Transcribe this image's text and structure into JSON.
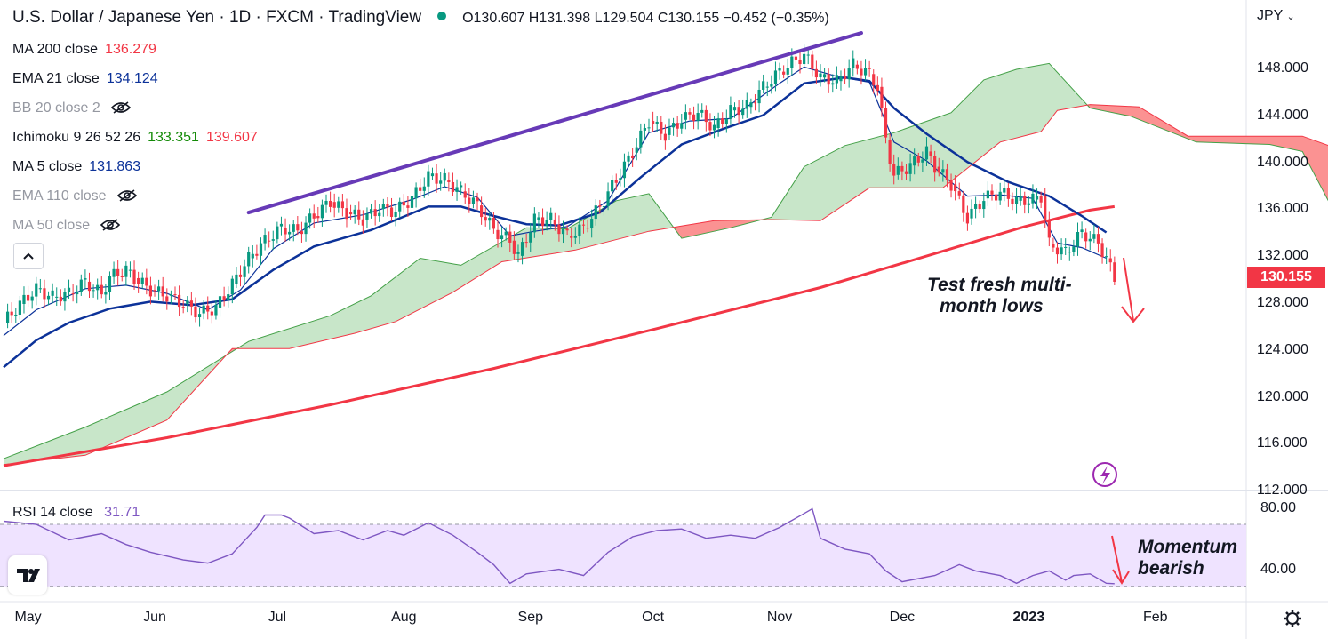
{
  "header": {
    "title": "U.S. Dollar / Japanese Yen · 1D · FXCM · TradingView",
    "ohlc": "O130.607 H131.398 L129.504 C130.155 −0.452 (−0.35%)"
  },
  "indicators": [
    {
      "label": "MA 200 close",
      "value": "136.279",
      "color": "#f23645",
      "hidden": false
    },
    {
      "label": "EMA 21 close",
      "value": "134.124",
      "color": "#0c3299",
      "hidden": false
    },
    {
      "label": "BB 20 close 2",
      "value": "",
      "hidden": true
    },
    {
      "label": "Ichimoku 9 26 52 26",
      "value": "133.351",
      "value2": "139.607",
      "color": "#138a07",
      "color2": "#f23645",
      "hidden": false
    },
    {
      "label": "MA 5 close",
      "value": "131.863",
      "color": "#0c3299",
      "hidden": false
    },
    {
      "label": "EMA 110 close",
      "value": "",
      "hidden": true
    },
    {
      "label": "MA 50 close",
      "value": "",
      "hidden": true
    }
  ],
  "currency": "JPY",
  "last_price": "130.155",
  "annotations": {
    "price_note_line1": "Test fresh multi-",
    "price_note_line2": "month lows",
    "rsi_note_line1": "Momentum",
    "rsi_note_line2": "bearish"
  },
  "rsi": {
    "label": "RSI 14 close",
    "value": "31.71"
  },
  "price_axis_labels": [
    "148.000",
    "144.000",
    "140.000",
    "136.000",
    "132.000",
    "128.000",
    "124.000",
    "120.000",
    "116.000",
    "112.000"
  ],
  "rsi_axis_labels": [
    "80.00",
    "40.00"
  ],
  "time_axis_labels": [
    "May",
    "Jun",
    "Jul",
    "Aug",
    "Sep",
    "Oct",
    "Nov",
    "Dec",
    "2023",
    "Feb"
  ],
  "colors": {
    "up": "#089981",
    "down": "#f23645",
    "ema21": "#0c3299",
    "ma5": "#0c3299",
    "ma200": "#f23645",
    "trendline": "#673ab7",
    "rsi": "#7e57c2",
    "cloud_bull": "#c8e6c9",
    "cloud_bear": "#fb8c8c"
  },
  "chart_data": {
    "type": "candlestick",
    "title": "U.S. Dollar / Japanese Yen · 1D · FXCM",
    "x_range": [
      "2022-04-25",
      "2023-02-06"
    ],
    "ylim": [
      112,
      152
    ],
    "close": [
      [
        0,
        126.4
      ],
      [
        4,
        128.0
      ],
      [
        8,
        129.3
      ],
      [
        12,
        128.6
      ],
      [
        16,
        128.9
      ],
      [
        20,
        129.9
      ],
      [
        24,
        128.8
      ],
      [
        26,
        130.3
      ],
      [
        30,
        130.9
      ],
      [
        32,
        130.2
      ],
      [
        36,
        129.2
      ],
      [
        40,
        128.7
      ],
      [
        44,
        128.0
      ],
      [
        48,
        127.2
      ],
      [
        52,
        127.7
      ],
      [
        56,
        129.7
      ],
      [
        60,
        131.9
      ],
      [
        64,
        133.4
      ],
      [
        68,
        134.5
      ],
      [
        72,
        134.2
      ],
      [
        76,
        135.5
      ],
      [
        80,
        136.7
      ],
      [
        84,
        135.8
      ],
      [
        88,
        135.2
      ],
      [
        92,
        136.1
      ],
      [
        96,
        135.9
      ],
      [
        100,
        137.0
      ],
      [
        104,
        138.9
      ],
      [
        108,
        138.6
      ],
      [
        112,
        137.6
      ],
      [
        116,
        136.4
      ],
      [
        120,
        134.3
      ],
      [
        124,
        133.4
      ],
      [
        126,
        132.1
      ],
      [
        130,
        135.2
      ],
      [
        134,
        135.2
      ],
      [
        138,
        133.8
      ],
      [
        142,
        134.5
      ],
      [
        146,
        136.3
      ],
      [
        150,
        138.6
      ],
      [
        154,
        140.9
      ],
      [
        158,
        143.6
      ],
      [
        162,
        142.4
      ],
      [
        166,
        143.7
      ],
      [
        170,
        144.3
      ],
      [
        174,
        143.0
      ],
      [
        178,
        144.5
      ],
      [
        182,
        144.8
      ],
      [
        186,
        146.5
      ],
      [
        190,
        147.8
      ],
      [
        194,
        148.8
      ],
      [
        196,
        149.2
      ],
      [
        200,
        147.3
      ],
      [
        204,
        147.0
      ],
      [
        208,
        148.4
      ],
      [
        212,
        147.6
      ],
      [
        214,
        146.5
      ],
      [
        216,
        142.0
      ],
      [
        218,
        139.0
      ],
      [
        222,
        139.8
      ],
      [
        226,
        141.0
      ],
      [
        228,
        139.7
      ],
      [
        232,
        138.2
      ],
      [
        236,
        135.3
      ],
      [
        240,
        137.0
      ],
      [
        244,
        137.5
      ],
      [
        248,
        136.8
      ],
      [
        252,
        136.9
      ],
      [
        254,
        137.2
      ],
      [
        256,
        133.1
      ],
      [
        260,
        132.4
      ],
      [
        264,
        134.1
      ],
      [
        268,
        133.2
      ],
      [
        270,
        131.9
      ],
      [
        272,
        130.2
      ]
    ],
    "ema21": [
      [
        0,
        122.6
      ],
      [
        8,
        124.9
      ],
      [
        16,
        126.4
      ],
      [
        26,
        127.6
      ],
      [
        36,
        128.2
      ],
      [
        46,
        127.9
      ],
      [
        56,
        128.4
      ],
      [
        66,
        130.9
      ],
      [
        76,
        132.9
      ],
      [
        90,
        134.3
      ],
      [
        104,
        136.3
      ],
      [
        112,
        136.3
      ],
      [
        120,
        135.5
      ],
      [
        128,
        134.8
      ],
      [
        136,
        134.7
      ],
      [
        146,
        135.8
      ],
      [
        156,
        138.8
      ],
      [
        166,
        141.6
      ],
      [
        176,
        142.9
      ],
      [
        186,
        144.1
      ],
      [
        196,
        146.8
      ],
      [
        206,
        147.3
      ],
      [
        212,
        147.0
      ],
      [
        218,
        144.7
      ],
      [
        226,
        142.5
      ],
      [
        236,
        140.1
      ],
      [
        246,
        138.4
      ],
      [
        256,
        137.2
      ],
      [
        264,
        135.5
      ],
      [
        270,
        134.1
      ]
    ],
    "ma5": [
      [
        0,
        125.3
      ],
      [
        8,
        127.5
      ],
      [
        20,
        129.3
      ],
      [
        30,
        129.6
      ],
      [
        40,
        128.9
      ],
      [
        50,
        127.5
      ],
      [
        58,
        129.2
      ],
      [
        66,
        132.7
      ],
      [
        76,
        134.9
      ],
      [
        88,
        135.6
      ],
      [
        100,
        136.9
      ],
      [
        108,
        138.0
      ],
      [
        116,
        137.1
      ],
      [
        124,
        133.8
      ],
      [
        130,
        134.2
      ],
      [
        138,
        134.6
      ],
      [
        148,
        136.8
      ],
      [
        158,
        142.6
      ],
      [
        168,
        143.6
      ],
      [
        178,
        143.8
      ],
      [
        190,
        146.8
      ],
      [
        196,
        148.2
      ],
      [
        204,
        147.4
      ],
      [
        212,
        146.9
      ],
      [
        218,
        141.8
      ],
      [
        226,
        140.2
      ],
      [
        236,
        137.2
      ],
      [
        244,
        137.3
      ],
      [
        252,
        137.0
      ],
      [
        258,
        133.2
      ],
      [
        264,
        132.8
      ],
      [
        270,
        131.9
      ]
    ],
    "ma200": [
      [
        0,
        114.2
      ],
      [
        40,
        116.6
      ],
      [
        80,
        119.4
      ],
      [
        120,
        122.5
      ],
      [
        160,
        125.9
      ],
      [
        200,
        129.4
      ],
      [
        230,
        132.5
      ],
      [
        250,
        134.6
      ],
      [
        266,
        136.0
      ],
      [
        272,
        136.3
      ]
    ],
    "ichimoku_span_a": [
      [
        0,
        114.8
      ],
      [
        20,
        117.5
      ],
      [
        40,
        120.5
      ],
      [
        60,
        124.8
      ],
      [
        80,
        127.0
      ],
      [
        90,
        128.7
      ],
      [
        102,
        131.9
      ],
      [
        112,
        131.3
      ],
      [
        128,
        134.5
      ],
      [
        138,
        134.4
      ],
      [
        150,
        136.8
      ],
      [
        158,
        137.4
      ],
      [
        166,
        133.6
      ],
      [
        178,
        134.5
      ],
      [
        188,
        135.4
      ],
      [
        196,
        139.7
      ],
      [
        206,
        141.5
      ],
      [
        218,
        142.6
      ],
      [
        232,
        144.3
      ],
      [
        240,
        147.1
      ],
      [
        248,
        148.0
      ],
      [
        256,
        148.5
      ],
      [
        266,
        144.7
      ],
      [
        276,
        144.0
      ],
      [
        292,
        141.8
      ],
      [
        310,
        141.6
      ],
      [
        318,
        141.0
      ],
      [
        326,
        135.7
      ],
      [
        340,
        135.1
      ]
    ],
    "ichimoku_span_b": [
      [
        0,
        114.3
      ],
      [
        20,
        115.1
      ],
      [
        40,
        118.1
      ],
      [
        56,
        124.2
      ],
      [
        70,
        124.2
      ],
      [
        86,
        125.5
      ],
      [
        96,
        126.5
      ],
      [
        110,
        129.0
      ],
      [
        122,
        131.6
      ],
      [
        140,
        132.6
      ],
      [
        158,
        134.2
      ],
      [
        174,
        135.1
      ],
      [
        188,
        135.2
      ],
      [
        200,
        135.1
      ],
      [
        212,
        137.9
      ],
      [
        230,
        137.9
      ],
      [
        244,
        141.8
      ],
      [
        254,
        142.7
      ],
      [
        258,
        144.5
      ],
      [
        266,
        145.0
      ],
      [
        278,
        144.8
      ],
      [
        290,
        142.3
      ],
      [
        318,
        142.3
      ],
      [
        326,
        141.3
      ],
      [
        340,
        141.3
      ]
    ],
    "trendline": [
      [
        60,
        135.8
      ],
      [
        210,
        151.1
      ]
    ],
    "rsi14": [
      [
        0,
        72
      ],
      [
        8,
        70
      ],
      [
        16,
        60
      ],
      [
        24,
        64
      ],
      [
        30,
        57
      ],
      [
        36,
        52
      ],
      [
        44,
        47
      ],
      [
        50,
        45
      ],
      [
        56,
        51
      ],
      [
        62,
        68
      ],
      [
        64,
        76
      ],
      [
        68,
        76
      ],
      [
        70,
        74
      ],
      [
        76,
        64
      ],
      [
        82,
        66
      ],
      [
        88,
        60
      ],
      [
        94,
        66
      ],
      [
        98,
        63
      ],
      [
        104,
        71
      ],
      [
        110,
        63
      ],
      [
        116,
        52
      ],
      [
        120,
        44
      ],
      [
        124,
        32
      ],
      [
        128,
        38
      ],
      [
        136,
        41
      ],
      [
        142,
        37
      ],
      [
        148,
        52
      ],
      [
        154,
        62
      ],
      [
        160,
        66
      ],
      [
        166,
        67
      ],
      [
        172,
        61
      ],
      [
        178,
        63
      ],
      [
        184,
        61
      ],
      [
        190,
        68
      ],
      [
        196,
        77
      ],
      [
        198,
        80
      ],
      [
        200,
        61
      ],
      [
        206,
        54
      ],
      [
        212,
        51
      ],
      [
        216,
        40
      ],
      [
        220,
        33
      ],
      [
        228,
        37
      ],
      [
        234,
        44
      ],
      [
        238,
        40
      ],
      [
        244,
        37
      ],
      [
        248,
        32
      ],
      [
        252,
        37
      ],
      [
        256,
        40
      ],
      [
        260,
        34
      ],
      [
        262,
        37
      ],
      [
        266,
        38
      ],
      [
        270,
        32
      ],
      [
        272,
        31.7
      ]
    ],
    "rsi_ylim": [
      20,
      90
    ],
    "rsi_levels": [
      70,
      30
    ]
  }
}
